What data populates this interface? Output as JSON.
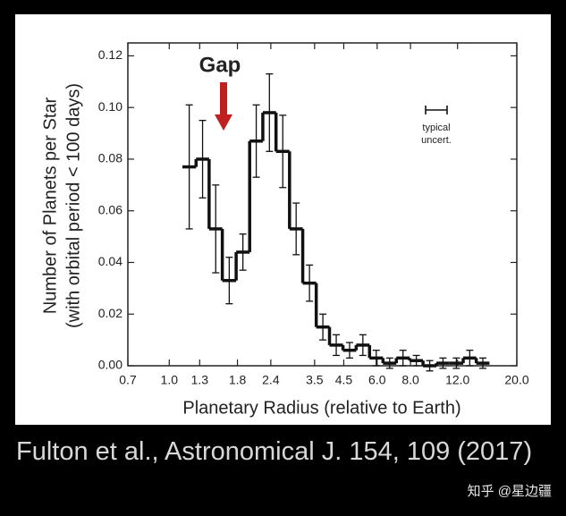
{
  "chart_data": {
    "type": "histogram",
    "xlabel": "Planetary Radius (relative to Earth)",
    "ylabel": [
      "Number of Planets per Star",
      "(with orbital period < 100 days)"
    ],
    "annotation": "Gap",
    "uncertainty_label": [
      "typical",
      "uncert."
    ],
    "xscale": "log",
    "xlim": [
      0.7,
      20
    ],
    "ylim": [
      0,
      0.125
    ],
    "xticks": [
      0.7,
      {
        "value": 1,
        "label": "1.0"
      },
      1.3,
      1.8,
      2.4,
      3.5,
      4.5,
      {
        "value": 6,
        "label": "6.0"
      },
      {
        "value": 8,
        "label": "8.0"
      },
      {
        "value": 12,
        "label": "12.0"
      },
      {
        "value": 20,
        "label": "20.0"
      }
    ],
    "yticks": [
      {
        "value": 0,
        "label": "0.00"
      },
      {
        "value": 0.02,
        "label": "0.02"
      },
      {
        "value": 0.04,
        "label": "0.04"
      },
      {
        "value": 0.06,
        "label": "0.06"
      },
      {
        "value": 0.08,
        "label": "0.08"
      },
      {
        "value": 0.1,
        "label": "0.10"
      },
      {
        "value": 0.12,
        "label": "0.12"
      }
    ],
    "bins": [
      1.12,
      1.26,
      1.41,
      1.58,
      1.78,
      2.0,
      2.24,
      2.51,
      2.82,
      3.16,
      3.55,
      3.98,
      4.47,
      5.01,
      5.62,
      6.31,
      7.08,
      7.94,
      8.91,
      10.0,
      11.2,
      12.6,
      14.1,
      15.8
    ],
    "values": [
      0.077,
      0.08,
      0.053,
      0.033,
      0.044,
      0.087,
      0.098,
      0.083,
      0.053,
      0.032,
      0.015,
      0.008,
      0.006,
      0.008,
      0.003,
      0.001,
      0.003,
      0.002,
      0.0,
      0.001,
      0.001,
      0.003,
      0.001
    ],
    "errors": [
      0.024,
      0.015,
      0.017,
      0.009,
      0.007,
      0.014,
      0.015,
      0.014,
      0.01,
      0.007,
      0.005,
      0.004,
      0.003,
      0.004,
      0.003,
      0.002,
      0.003,
      0.002,
      0.002,
      0.002,
      0.002,
      0.003,
      0.002
    ],
    "color": "#111111",
    "annotation_color": "#c0201e"
  },
  "caption": "Fulton et al., Astronomical J. 154, 109 (2017)",
  "watermark": "知乎 @星边疆"
}
